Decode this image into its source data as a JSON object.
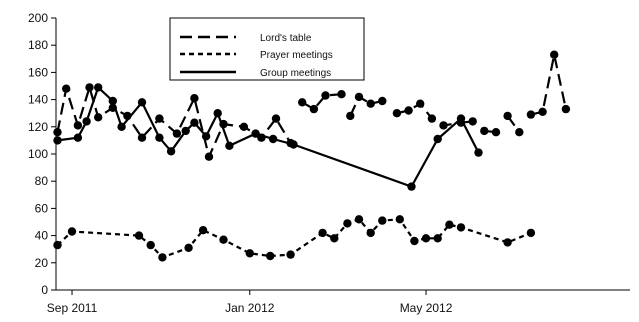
{
  "chart_data": {
    "type": "line",
    "title": "",
    "xlabel": "",
    "ylabel": "",
    "ylim": [
      0,
      200
    ],
    "yticks": [
      0,
      20,
      40,
      60,
      80,
      100,
      120,
      140,
      160,
      180,
      200
    ],
    "ytick_labels": [
      "0",
      "20",
      "40",
      "60",
      "80",
      "100",
      "120",
      "140",
      "160",
      "180",
      "200"
    ],
    "xlim": [
      "2011-08-21",
      "2012-09-18"
    ],
    "xticks": [
      {
        "date": "2011-09-01",
        "label": "Sep 2011"
      },
      {
        "date": "2012-01-01",
        "label": "Jan 2012"
      },
      {
        "date": "2012-05-01",
        "label": "May 2012"
      }
    ],
    "grid": false,
    "legend_position": "top-center",
    "series": [
      {
        "name": "Lord's table",
        "style": "long-dash",
        "color": "#000000",
        "points": [
          [
            "2011-08-22",
            116
          ],
          [
            "2011-08-28",
            148
          ],
          [
            "2011-09-05",
            121
          ],
          [
            "2011-09-13",
            149
          ],
          [
            "2011-09-19",
            127
          ],
          [
            "2011-09-29",
            134
          ],
          [
            "2011-10-09",
            128
          ],
          [
            "2011-10-19",
            112
          ],
          [
            "2011-10-31",
            126
          ],
          [
            "2011-11-12",
            115
          ],
          [
            "2011-11-24",
            141
          ],
          [
            "2011-12-04",
            98
          ],
          [
            "2011-12-14",
            122
          ],
          [
            "2011-12-28",
            120
          ],
          [
            "2012-01-09",
            112
          ],
          [
            "2012-01-19",
            126
          ],
          [
            "2012-01-29",
            108
          ],
          null,
          [
            "2012-02-06",
            138
          ],
          [
            "2012-02-14",
            133
          ],
          [
            "2012-02-22",
            143
          ],
          [
            "2012-03-04",
            144
          ],
          null,
          [
            "2012-03-10",
            128
          ],
          [
            "2012-03-16",
            142
          ],
          [
            "2012-03-24",
            137
          ],
          [
            "2012-04-01",
            139
          ],
          null,
          [
            "2012-04-11",
            130
          ],
          [
            "2012-04-19",
            132
          ],
          [
            "2012-04-27",
            137
          ],
          [
            "2012-05-05",
            126
          ],
          [
            "2012-05-13",
            121
          ],
          [
            "2012-05-25",
            123
          ],
          [
            "2012-06-02",
            124
          ],
          null,
          [
            "2012-06-10",
            117
          ],
          [
            "2012-06-18",
            116
          ],
          null,
          [
            "2012-06-26",
            128
          ],
          [
            "2012-07-04",
            116
          ],
          null,
          [
            "2012-07-12",
            129
          ],
          [
            "2012-07-20",
            131
          ],
          [
            "2012-07-28",
            173
          ],
          [
            "2012-08-05",
            133
          ]
        ]
      },
      {
        "name": "Prayer meetings",
        "style": "short-dash",
        "color": "#000000",
        "points": [
          [
            "2011-08-22",
            33
          ],
          [
            "2011-09-01",
            43
          ],
          [
            "2011-10-17",
            40
          ],
          [
            "2011-10-25",
            33
          ],
          [
            "2011-11-02",
            24
          ],
          [
            "2011-11-20",
            31
          ],
          [
            "2011-11-30",
            44
          ],
          [
            "2011-12-14",
            37
          ],
          [
            "2012-01-01",
            27
          ],
          [
            "2012-01-15",
            25
          ],
          [
            "2012-01-29",
            26
          ],
          [
            "2012-02-20",
            42
          ],
          [
            "2012-02-28",
            38
          ],
          [
            "2012-03-08",
            49
          ],
          [
            "2012-03-16",
            52
          ],
          [
            "2012-03-24",
            42
          ],
          [
            "2012-04-01",
            51
          ],
          [
            "2012-04-13",
            52
          ],
          [
            "2012-04-23",
            36
          ],
          [
            "2012-05-01",
            38
          ],
          [
            "2012-05-09",
            38
          ],
          [
            "2012-05-17",
            48
          ],
          [
            "2012-05-25",
            46
          ],
          [
            "2012-06-26",
            35
          ],
          [
            "2012-07-12",
            42
          ]
        ]
      },
      {
        "name": "Group meetings",
        "style": "solid",
        "color": "#000000",
        "points": [
          [
            "2011-08-22",
            110
          ],
          [
            "2011-09-05",
            112
          ],
          [
            "2011-09-11",
            124
          ],
          [
            "2011-09-19",
            149
          ],
          [
            "2011-09-29",
            139
          ],
          [
            "2011-10-05",
            120
          ],
          [
            "2011-10-19",
            138
          ],
          [
            "2011-10-31",
            112
          ],
          [
            "2011-11-08",
            102
          ],
          [
            "2011-11-18",
            117
          ],
          [
            "2011-11-24",
            123
          ],
          [
            "2011-12-02",
            113
          ],
          [
            "2011-12-10",
            130
          ],
          [
            "2011-12-18",
            106
          ],
          [
            "2012-01-05",
            115
          ],
          [
            "2012-01-17",
            111
          ],
          [
            "2012-01-31",
            107
          ],
          [
            "2012-04-21",
            76
          ],
          [
            "2012-05-09",
            111
          ],
          [
            "2012-05-25",
            126
          ],
          [
            "2012-06-06",
            101
          ]
        ]
      }
    ]
  }
}
